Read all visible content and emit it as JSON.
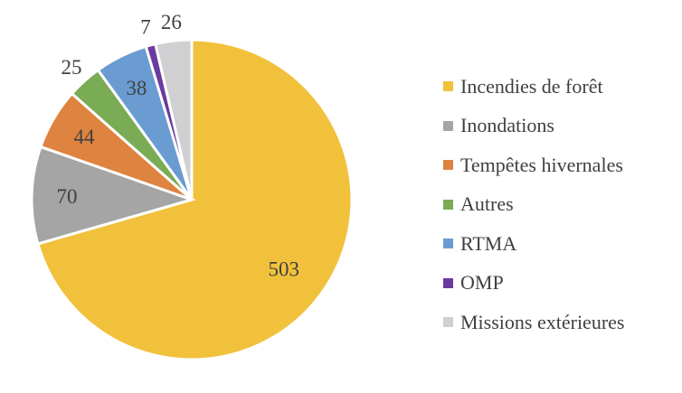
{
  "chart_data": {
    "type": "pie",
    "title": "",
    "categories": [
      "Incendies de forêt",
      "Inondations",
      "Tempêtes hivernales",
      "Autres",
      "RTMA",
      "OMP",
      "Missions extérieures"
    ],
    "values": [
      503,
      70,
      44,
      25,
      38,
      7,
      26
    ],
    "colors": [
      "#f2c13c",
      "#a5a5a5",
      "#de8340",
      "#7aab55",
      "#6a9bd1",
      "#6a3aa0",
      "#d0cfd1"
    ],
    "legend_position": "right",
    "start_angle": "12 o'clock, clockwise"
  },
  "legend": {
    "items": [
      {
        "label": "Incendies de forêt",
        "color": "#f2c13c"
      },
      {
        "label": "Inondations",
        "color": "#a5a5a5"
      },
      {
        "label": "Tempêtes hivernales",
        "color": "#de8340"
      },
      {
        "label": "Autres",
        "color": "#7aab55"
      },
      {
        "label": "RTMA",
        "color": "#6a9bd1"
      },
      {
        "label": "OMP",
        "color": "#6a3aa0"
      },
      {
        "label": "Missions extérieures",
        "color": "#d0cfd1"
      }
    ]
  }
}
